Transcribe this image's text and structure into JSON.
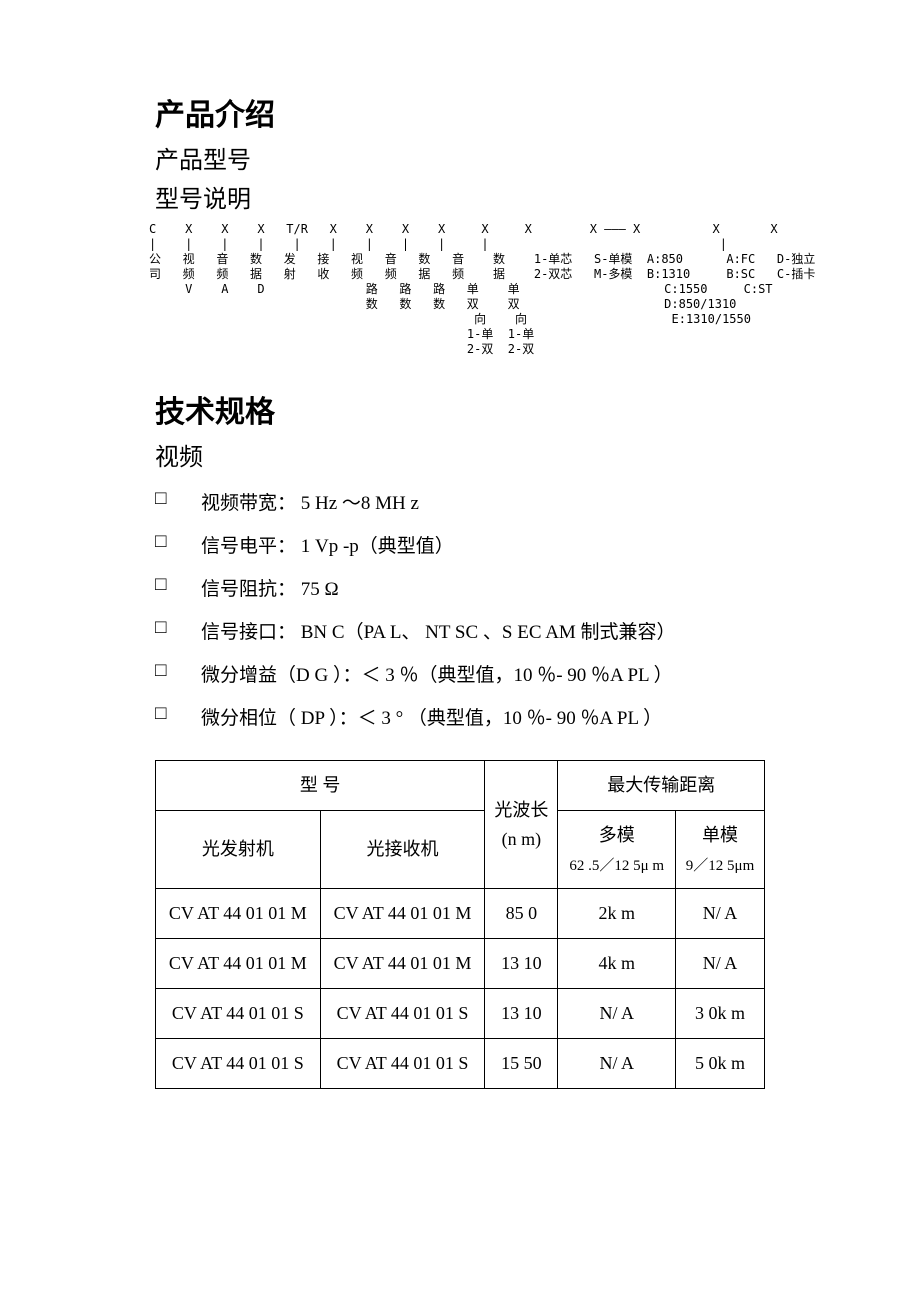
{
  "headings": {
    "intro": "产品介绍",
    "model_no": "产品型号",
    "model_desc": "型号说明",
    "tech_spec": "技术规格",
    "video": "视频"
  },
  "model_diagram": {
    "row_codes": "C    X    X    X   T/R   X    X    X    X     X     X        X ——— X          X       X",
    "row_bars": "|    |    |    |    |    |    |    |    |     |                                |",
    "lines": [
      "公   视   音   数   发   接   视   音   数   音    数    1-单芯   S-单模  A:850      A:FC   D-独立",
      "司   频   频   据   射   收   频   频   据   频    据    2-双芯   M-多模  B:1310     B:SC   C-插卡",
      "     V    A    D              路   路   路   单    单                    C:1550     C:ST",
      "                              数   数   数   双    双                    D:850/1310",
      "                                             向    向                    E:1310/1550",
      "                                            1-单  1-单",
      "                                            2-双  2-双"
    ]
  },
  "video_specs": [
    "视频带宽：  5  Hz ～8  MH  z",
    "信号电平：  1  Vp -p（典型值）",
    "信号阻抗：  75 Ω",
    "信号接口：  BN C（PA L、 NT SC 、S EC AM 制式兼容）",
    "微分增益（D G ）：＜ 3 ％（典型值，10 ％- 90 ％A PL ）",
    "微分相位（ DP ）：＜ 3 °  （典型值，10 ％- 90 ％A PL ）"
  ],
  "marker": "□",
  "table": {
    "header": {
      "model": "型   号",
      "tx": "光发射机",
      "rx": "光接收机",
      "wavelength": "光波长",
      "wavelength_unit": "(n  m)",
      "distance": "最大传输距离",
      "multimode": "多模",
      "multimode_sub": "62 .5／12 5μ m",
      "singlemode": "单模",
      "singlemode_sub": "9／12  5μm"
    },
    "rows": [
      {
        "tx": "CV  AT  44 01  01  M",
        "rx": "CV  AT  44 01  01  M",
        "wl": "85  0",
        "mm": "2k  m",
        "sm": "N/ A"
      },
      {
        "tx": "CV  AT  44 01  01  M",
        "rx": "CV  AT  44 01  01  M",
        "wl": "13  10",
        "mm": "4k  m",
        "sm": "N/ A"
      },
      {
        "tx": "CV  AT  44 01  01  S",
        "rx": "CV  AT  44 01  01  S",
        "wl": "13  10",
        "mm": "N/ A",
        "sm": "3  0k  m"
      },
      {
        "tx": "CV  AT  44 01  01  S",
        "rx": "CV  AT  44 01  01  S",
        "wl": "15  50",
        "mm": "N/ A",
        "sm": "5  0k  m"
      }
    ]
  }
}
